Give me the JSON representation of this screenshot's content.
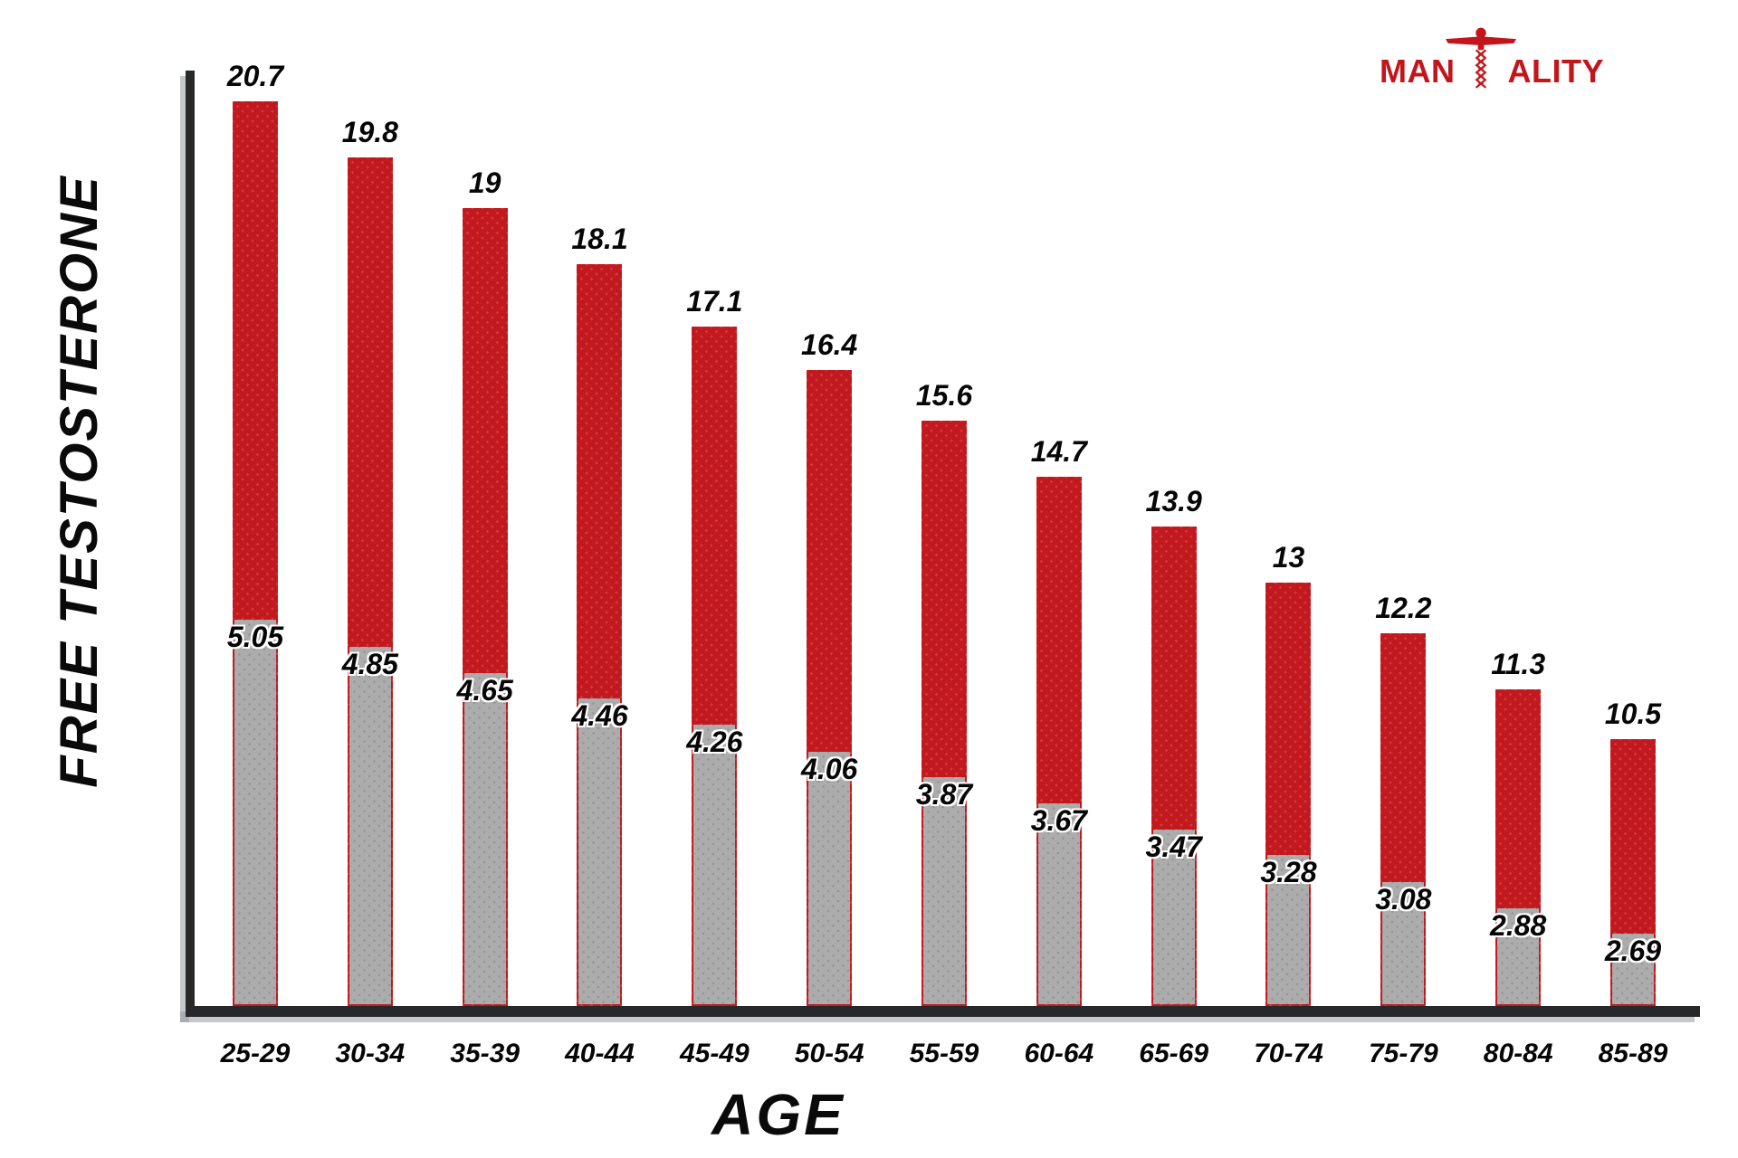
{
  "logo": {
    "text_left": "MAN",
    "text_right": "ALITY",
    "icon": "dna-man-icon",
    "color": "#c3161c"
  },
  "chart_data": {
    "type": "bar",
    "title": "",
    "xlabel": "AGE",
    "ylabel": "FREE TESTOSTERONE",
    "categories": [
      "25-29",
      "30-34",
      "35-39",
      "40-44",
      "45-49",
      "50-54",
      "55-59",
      "60-64",
      "65-69",
      "70-74",
      "75-79",
      "80-84",
      "85-89"
    ],
    "series": [
      {
        "name": "upper-value",
        "color": "#c2191f",
        "values": [
          20.7,
          19.8,
          19,
          18.1,
          17.1,
          16.4,
          15.6,
          14.7,
          13.9,
          13,
          12.2,
          11.3,
          10.5
        ]
      },
      {
        "name": "lower-value",
        "color": "#acacac",
        "values": [
          5.05,
          4.85,
          4.65,
          4.46,
          4.26,
          4.06,
          3.87,
          3.67,
          3.47,
          3.28,
          3.08,
          2.88,
          2.69
        ]
      }
    ],
    "legend": false,
    "grid": false,
    "axis_color": "#26282a",
    "background": "#ffffff"
  }
}
